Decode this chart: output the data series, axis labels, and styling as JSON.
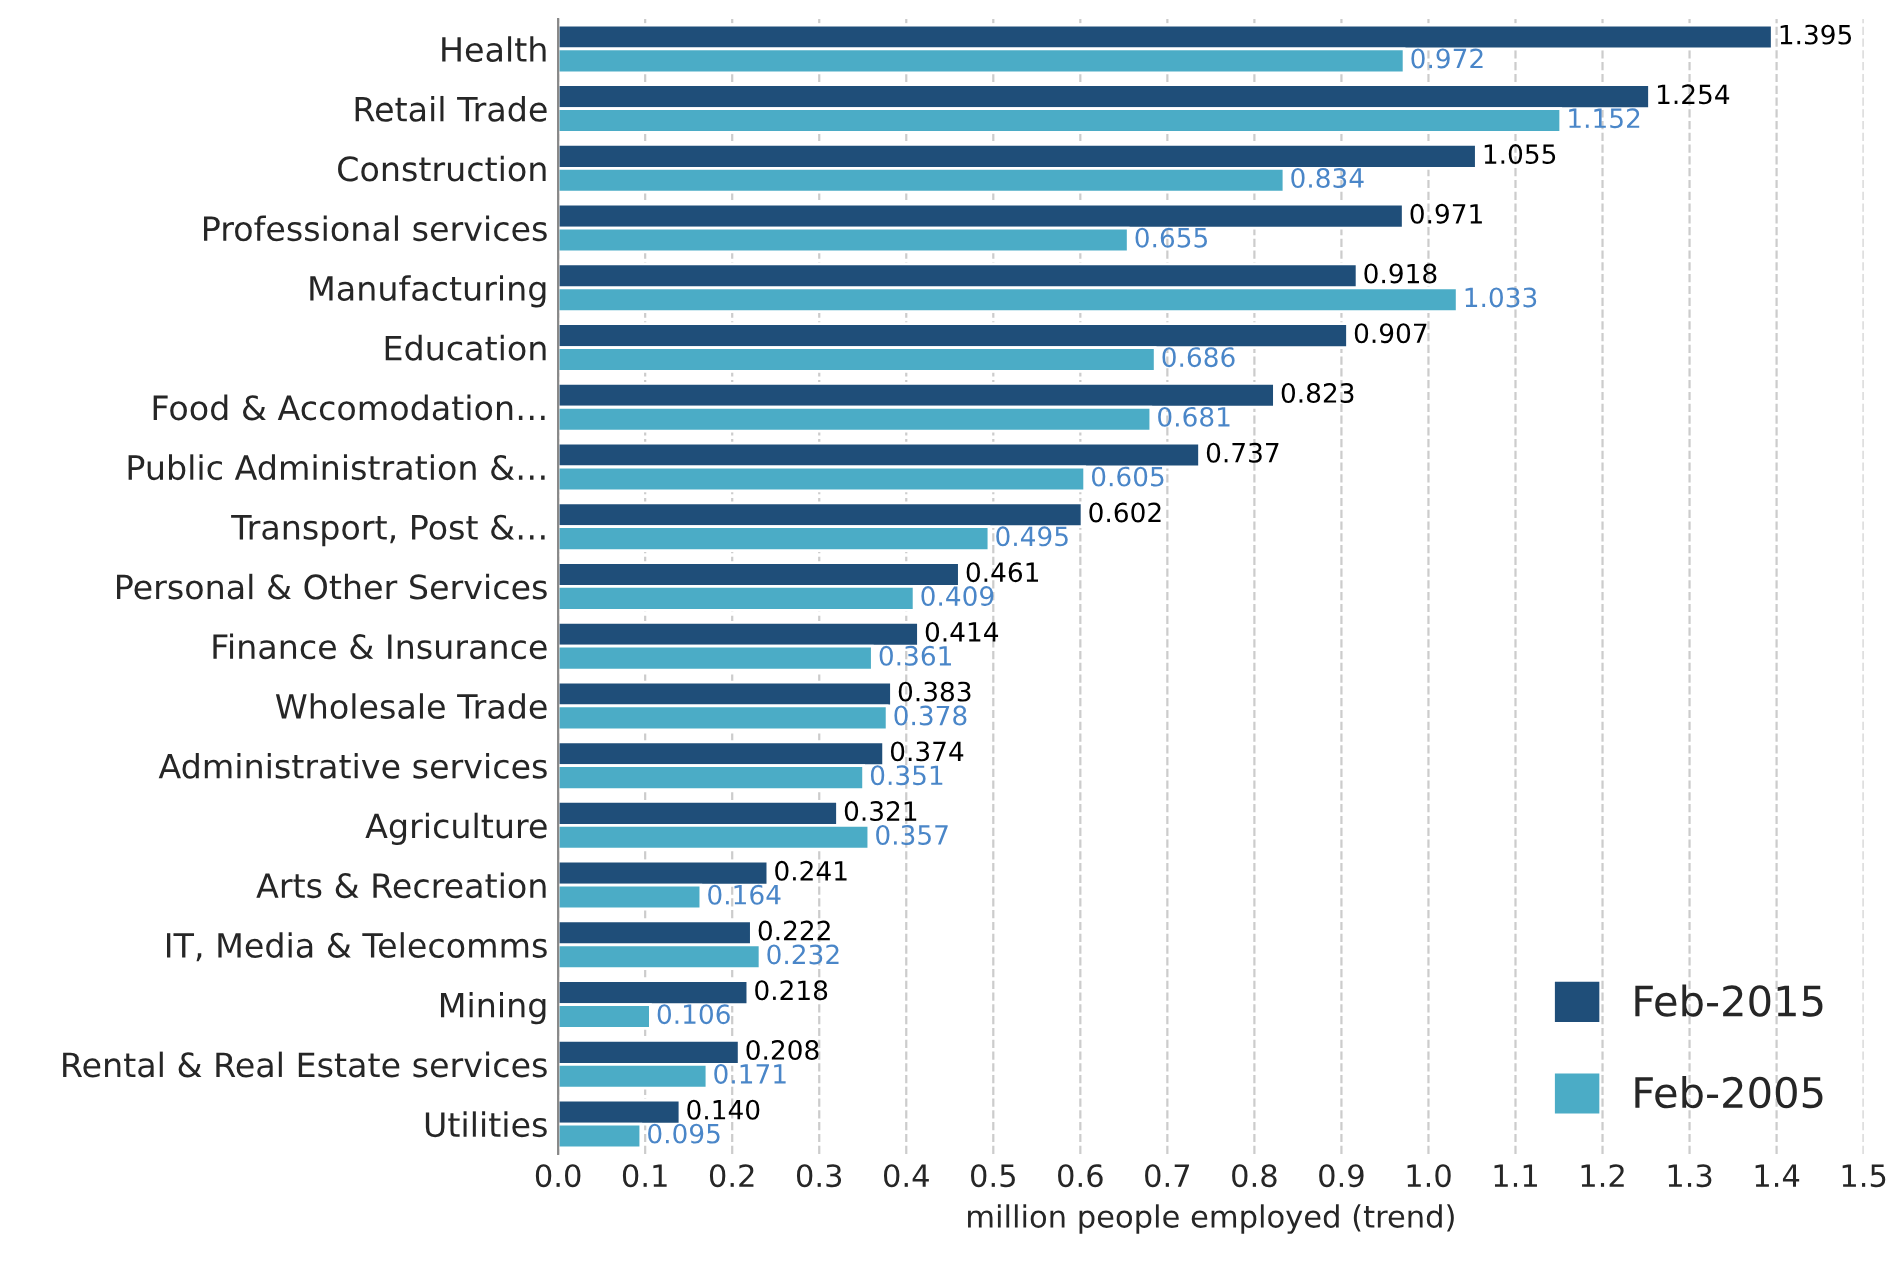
{
  "chart_data": {
    "type": "bar",
    "orientation": "horizontal",
    "xlabel": "million people employed (trend)",
    "categories": [
      "Health",
      "Retail Trade",
      "Construction",
      "Professional services",
      "Manufacturing",
      "Education",
      "Food & Accomodation…",
      "Public Administration &…",
      "Transport, Post &…",
      "Personal & Other Services",
      "Finance & Insurance",
      "Wholesale Trade",
      "Administrative services",
      "Agriculture",
      "Arts & Recreation",
      "IT, Media & Telecomms",
      "Mining",
      "Rental & Real Estate services",
      "Utilities"
    ],
    "series": [
      {
        "name": "Feb-2015",
        "color": "#1f4e79",
        "values": [
          1.395,
          1.254,
          1.055,
          0.971,
          0.918,
          0.907,
          0.823,
          0.737,
          0.602,
          0.461,
          0.414,
          0.383,
          0.374,
          0.321,
          0.241,
          0.222,
          0.218,
          0.208,
          0.14
        ],
        "value_labels": [
          "1.395",
          "1.254",
          "1.055",
          "0.971",
          "0.918",
          "0.907",
          "0.823",
          "0.737",
          "0.602",
          "0.461",
          "0.414",
          "0.383",
          "0.374",
          "0.321",
          "0.241",
          "0.222",
          "0.218",
          "0.208",
          "0.140"
        ]
      },
      {
        "name": "Feb-2005",
        "color": "#4bacc6",
        "values": [
          0.972,
          1.152,
          0.834,
          0.655,
          1.033,
          0.686,
          0.681,
          0.605,
          0.495,
          0.409,
          0.361,
          0.378,
          0.351,
          0.357,
          0.164,
          0.232,
          0.106,
          0.171,
          0.095
        ],
        "value_labels": [
          "0.972",
          "1.152",
          "0.834",
          "0.655",
          "1.033",
          "0.686",
          "0.681",
          "0.605",
          "0.495",
          "0.409",
          "0.361",
          "0.378",
          "0.351",
          "0.357",
          "0.164",
          "0.232",
          "0.106",
          "0.171",
          "0.095"
        ]
      }
    ],
    "xlim": [
      0.0,
      1.5
    ],
    "xticks": [
      {
        "value": 0,
        "label": "0.0"
      },
      0.1,
      0.2,
      0.3,
      0.4,
      0.5,
      0.6,
      0.7,
      0.8,
      0.9,
      {
        "value": 1,
        "label": "1.0"
      },
      1.1,
      1.2,
      1.3,
      1.4,
      1.5
    ],
    "grid": "x",
    "legend": "bottom right"
  }
}
